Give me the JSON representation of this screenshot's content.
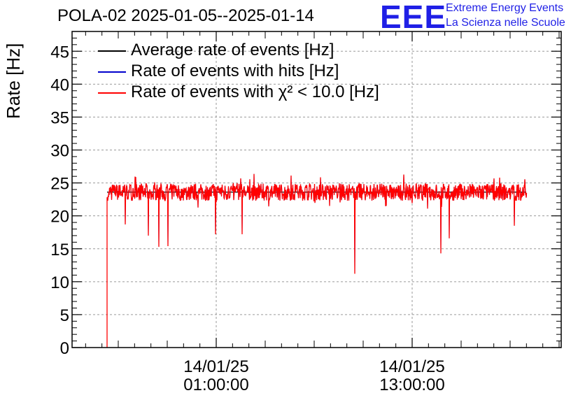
{
  "header": {
    "title": "POLA-02 2025-01-05--2025-01-14",
    "logo_mark": "EEE",
    "logo_line1": "Extreme Energy Events",
    "logo_line2": "La Scienza nelle Scuole",
    "logo_color": "#1f1fe6"
  },
  "chart_data": {
    "type": "line",
    "ylabel": "Rate [Hz]",
    "xlabel": "",
    "ylim": [
      0,
      48
    ],
    "y_ticks": [
      "0",
      "5",
      "10",
      "15",
      "20",
      "25",
      "30",
      "35",
      "40",
      "45"
    ],
    "x_tick_labels": [
      {
        "date": "14/01/25",
        "time": "01:00:00"
      },
      {
        "date": "14/01/25",
        "time": "13:00:00"
      }
    ],
    "grid": true,
    "legend_position": "top-left",
    "series": [
      {
        "name": "Average rate of events [Hz]",
        "color": "#000000",
        "level": 23.6
      },
      {
        "name": "Rate of events with hits [Hz]",
        "color": "#0000cc",
        "level": 23.6
      },
      {
        "name": "Rate of events with χ² < 10.0 [Hz]",
        "color": "#ff0000",
        "level": 23.6
      }
    ],
    "dips": [
      17.2,
      15.3,
      15.4,
      18.7,
      17.0,
      17.2,
      11.2,
      14.3,
      16.6,
      18.5
    ],
    "start_value": 0
  }
}
